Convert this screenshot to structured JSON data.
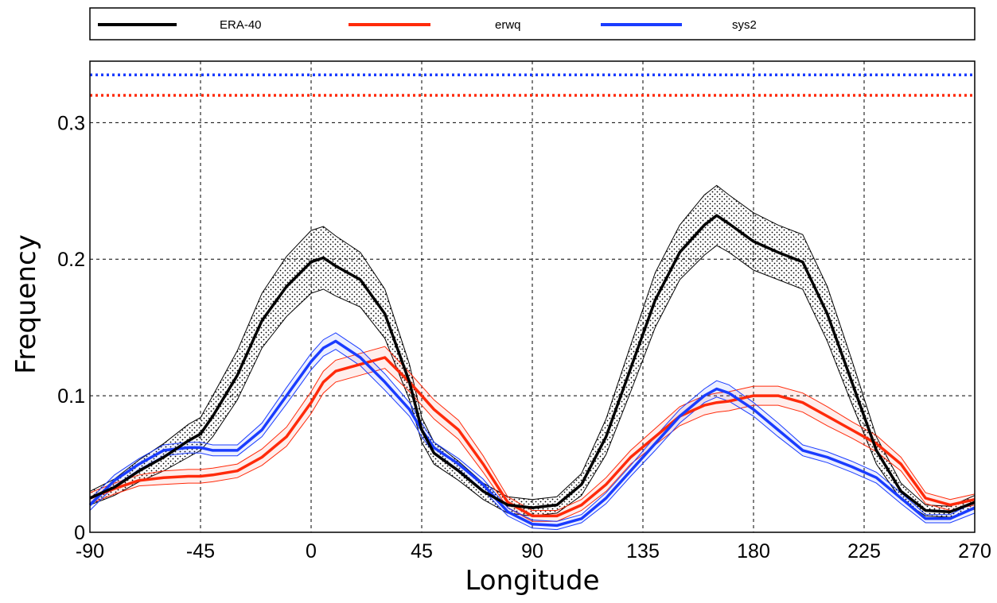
{
  "colors": {
    "ERA-40": "#000000",
    "erwq": "#ff2a0a",
    "sys2": "#1a3cff",
    "grid": "#000000"
  },
  "chart_data": {
    "type": "line",
    "xlabel": "Longitude",
    "ylabel": "Frequency",
    "xlim": [
      -90,
      270
    ],
    "ylim": [
      0,
      0.345
    ],
    "xticks": [
      -90,
      -45,
      0,
      45,
      90,
      135,
      180,
      225,
      270
    ],
    "xtick_labels": [
      "-90",
      "-45",
      "0",
      "45",
      "90",
      "135",
      "180",
      "225",
      "270"
    ],
    "yticks": [
      0,
      0.1,
      0.2,
      0.3
    ],
    "ytick_labels": [
      "0",
      "0.1",
      "0.2",
      "0.3"
    ],
    "grid": true,
    "legend_position": "top",
    "x": [
      -90,
      -80,
      -70,
      -60,
      -50,
      -45,
      -40,
      -30,
      -20,
      -10,
      0,
      5,
      10,
      20,
      30,
      40,
      45,
      50,
      60,
      70,
      80,
      90,
      100,
      110,
      120,
      130,
      140,
      150,
      160,
      165,
      170,
      180,
      190,
      200,
      210,
      220,
      230,
      240,
      250,
      260,
      270
    ],
    "series": [
      {
        "name": "ERA-40",
        "values": [
          0.025,
          0.033,
          0.045,
          0.055,
          0.067,
          0.072,
          0.085,
          0.115,
          0.155,
          0.18,
          0.198,
          0.201,
          0.195,
          0.185,
          0.16,
          0.11,
          0.075,
          0.058,
          0.045,
          0.03,
          0.02,
          0.018,
          0.02,
          0.035,
          0.07,
          0.12,
          0.17,
          0.205,
          0.225,
          0.232,
          0.226,
          0.213,
          0.205,
          0.198,
          0.16,
          0.11,
          0.06,
          0.03,
          0.016,
          0.015,
          0.022
        ],
        "lower": [
          0.02,
          0.027,
          0.037,
          0.045,
          0.055,
          0.06,
          0.07,
          0.097,
          0.135,
          0.158,
          0.175,
          0.178,
          0.173,
          0.165,
          0.142,
          0.097,
          0.066,
          0.05,
          0.038,
          0.024,
          0.014,
          0.012,
          0.014,
          0.027,
          0.057,
          0.103,
          0.15,
          0.185,
          0.203,
          0.21,
          0.205,
          0.192,
          0.185,
          0.178,
          0.14,
          0.094,
          0.05,
          0.024,
          0.012,
          0.011,
          0.017
        ],
        "upper": [
          0.03,
          0.039,
          0.053,
          0.065,
          0.079,
          0.084,
          0.1,
          0.133,
          0.175,
          0.202,
          0.221,
          0.224,
          0.217,
          0.205,
          0.178,
          0.123,
          0.084,
          0.066,
          0.052,
          0.036,
          0.026,
          0.024,
          0.026,
          0.043,
          0.083,
          0.137,
          0.19,
          0.225,
          0.247,
          0.254,
          0.247,
          0.234,
          0.225,
          0.218,
          0.18,
          0.126,
          0.07,
          0.036,
          0.02,
          0.019,
          0.027
        ],
        "level": 0
      },
      {
        "name": "erwq",
        "values": [
          0.025,
          0.032,
          0.038,
          0.04,
          0.041,
          0.041,
          0.042,
          0.045,
          0.055,
          0.07,
          0.095,
          0.11,
          0.118,
          0.123,
          0.128,
          0.11,
          0.1,
          0.09,
          0.075,
          0.05,
          0.022,
          0.012,
          0.012,
          0.02,
          0.035,
          0.055,
          0.07,
          0.085,
          0.093,
          0.095,
          0.096,
          0.1,
          0.1,
          0.095,
          0.085,
          0.075,
          0.065,
          0.05,
          0.025,
          0.02,
          0.024
        ],
        "lower": [
          0.021,
          0.028,
          0.034,
          0.035,
          0.036,
          0.036,
          0.037,
          0.04,
          0.049,
          0.063,
          0.087,
          0.102,
          0.11,
          0.115,
          0.12,
          0.103,
          0.093,
          0.083,
          0.068,
          0.044,
          0.018,
          0.008,
          0.008,
          0.016,
          0.03,
          0.05,
          0.064,
          0.078,
          0.086,
          0.088,
          0.089,
          0.093,
          0.093,
          0.088,
          0.078,
          0.069,
          0.059,
          0.045,
          0.021,
          0.016,
          0.02
        ],
        "upper": [
          0.029,
          0.036,
          0.042,
          0.045,
          0.046,
          0.046,
          0.047,
          0.05,
          0.061,
          0.077,
          0.103,
          0.118,
          0.126,
          0.131,
          0.136,
          0.117,
          0.107,
          0.097,
          0.082,
          0.056,
          0.026,
          0.016,
          0.016,
          0.024,
          0.04,
          0.06,
          0.076,
          0.092,
          0.1,
          0.102,
          0.103,
          0.107,
          0.107,
          0.102,
          0.092,
          0.081,
          0.071,
          0.055,
          0.029,
          0.024,
          0.028
        ],
        "level": 0.32
      },
      {
        "name": "sys2",
        "values": [
          0.02,
          0.038,
          0.05,
          0.06,
          0.062,
          0.062,
          0.06,
          0.06,
          0.075,
          0.1,
          0.125,
          0.135,
          0.14,
          0.128,
          0.11,
          0.09,
          0.075,
          0.062,
          0.05,
          0.035,
          0.015,
          0.006,
          0.005,
          0.01,
          0.025,
          0.045,
          0.065,
          0.085,
          0.1,
          0.105,
          0.102,
          0.09,
          0.075,
          0.06,
          0.055,
          0.048,
          0.04,
          0.025,
          0.01,
          0.01,
          0.018
        ],
        "lower": [
          0.016,
          0.034,
          0.046,
          0.056,
          0.058,
          0.058,
          0.056,
          0.056,
          0.07,
          0.094,
          0.119,
          0.129,
          0.134,
          0.122,
          0.104,
          0.085,
          0.07,
          0.058,
          0.046,
          0.031,
          0.012,
          0.003,
          0.002,
          0.007,
          0.021,
          0.041,
          0.06,
          0.08,
          0.095,
          0.099,
          0.096,
          0.085,
          0.07,
          0.056,
          0.051,
          0.044,
          0.036,
          0.021,
          0.007,
          0.007,
          0.014
        ],
        "upper": [
          0.024,
          0.042,
          0.054,
          0.064,
          0.066,
          0.066,
          0.064,
          0.064,
          0.08,
          0.106,
          0.131,
          0.141,
          0.146,
          0.134,
          0.116,
          0.095,
          0.08,
          0.066,
          0.054,
          0.039,
          0.018,
          0.009,
          0.008,
          0.013,
          0.029,
          0.049,
          0.07,
          0.09,
          0.105,
          0.111,
          0.108,
          0.095,
          0.08,
          0.064,
          0.059,
          0.052,
          0.044,
          0.029,
          0.013,
          0.013,
          0.022
        ],
        "level": 0.335
      }
    ]
  }
}
